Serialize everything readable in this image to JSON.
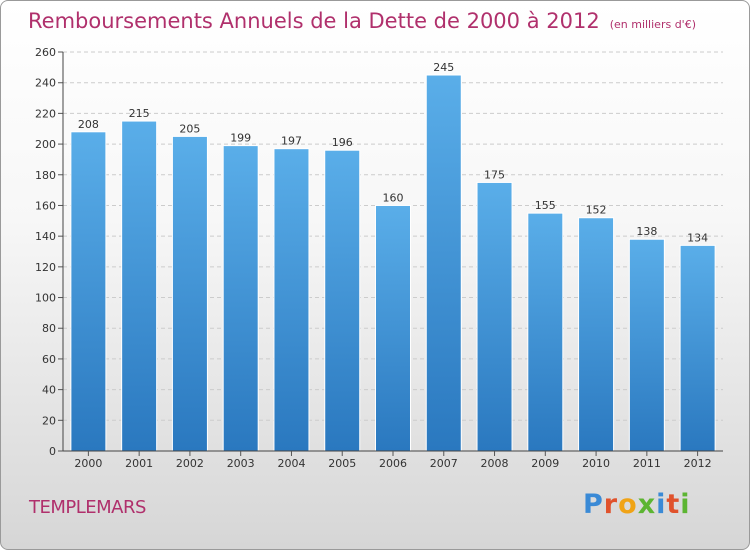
{
  "chart_data": {
    "type": "bar",
    "title": "Remboursements Annuels de la Dette de 2000 à 2012",
    "subtitle": "(en milliers d'€)",
    "categories": [
      "2000",
      "2001",
      "2002",
      "2003",
      "2004",
      "2005",
      "2006",
      "2007",
      "2008",
      "2009",
      "2010",
      "2011",
      "2012"
    ],
    "values": [
      208,
      215,
      205,
      199,
      197,
      196,
      160,
      245,
      175,
      155,
      152,
      138,
      134
    ],
    "ylim": [
      0,
      260
    ],
    "yticks": [
      0,
      20,
      40,
      60,
      80,
      100,
      120,
      140,
      160,
      180,
      200,
      220,
      240,
      260
    ],
    "grid": true,
    "bar_color": "#4fa3e3",
    "bar_color_dark": "#2a78bf"
  },
  "commune": "TEMPLEMARS",
  "logo": {
    "letters": [
      "P",
      "r",
      "o",
      "x",
      "i",
      "t",
      "i"
    ]
  }
}
